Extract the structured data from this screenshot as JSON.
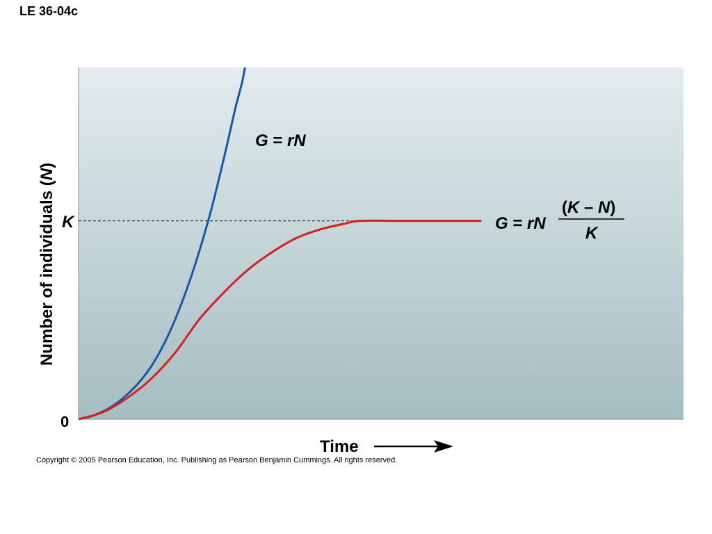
{
  "figure_label": "LE 36-04c",
  "copyright": "Copyright © 2005 Pearson Education, Inc. Publishing as Pearson Benjamin Cummings. All rights reserved.",
  "chart_data": {
    "type": "line",
    "xlabel": "Time",
    "ylabel_main": "Number of individuals (",
    "ylabel_var": "N",
    "ylabel_close": ")",
    "y_origin_label": "0",
    "k_label": "K",
    "xlim": [
      0,
      100
    ],
    "ylim": [
      0,
      100
    ],
    "k_value": 56.4,
    "grid": false,
    "colors": {
      "exponential": "#1a56a6",
      "logistic": "#d61f1f",
      "plot_bg_top": "#e3ecee",
      "plot_bg_bottom": "#a5bdc1",
      "k_line": "#333333"
    },
    "series": [
      {
        "key": "exponential",
        "x": [
          0,
          2,
          4,
          6,
          8,
          10,
          12,
          14,
          16,
          18,
          20,
          22,
          24,
          25,
          26,
          27,
          27.5
        ],
        "y": [
          0,
          0.8,
          2.2,
          4.2,
          7.0,
          10.5,
          15.0,
          21.0,
          28.5,
          37.5,
          48.0,
          60.0,
          74.0,
          81.5,
          89.0,
          95.5,
          100
        ]
      },
      {
        "key": "logistic",
        "x": [
          0,
          4,
          8,
          12,
          16,
          20,
          24,
          28,
          32,
          36,
          40,
          44,
          46.5,
          52,
          60,
          66.6
        ],
        "y": [
          0,
          2.0,
          6.0,
          11.5,
          19.0,
          28.5,
          36.0,
          42.5,
          47.5,
          51.5,
          54.0,
          55.6,
          56.4,
          56.4,
          56.4,
          56.4
        ]
      }
    ],
    "equations": {
      "exponential": {
        "G": "G",
        "eq": " = ",
        "rN": "rN"
      },
      "logistic": {
        "G": "G",
        "eq": " = ",
        "rN": "rN",
        "open": "(",
        "K": "K",
        "minus": " – ",
        "N": "N",
        "close": ")",
        "denom": "K"
      }
    }
  }
}
